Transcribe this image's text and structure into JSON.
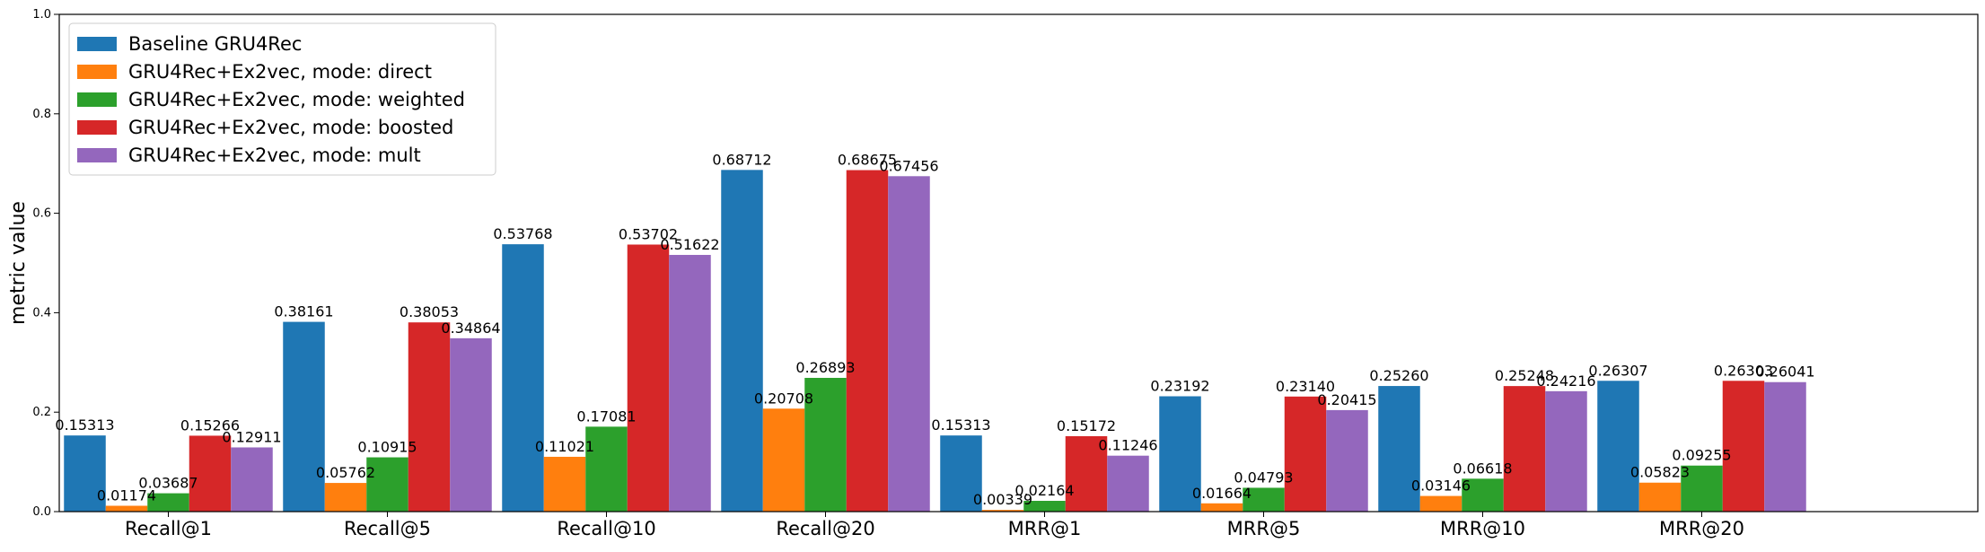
{
  "chart_data": {
    "type": "bar",
    "title": "",
    "xlabel": "",
    "ylabel": "metric value",
    "ylim": [
      0,
      1.0
    ],
    "yticks": [
      "0.0",
      "0.2",
      "0.4",
      "0.6",
      "0.8",
      "1.0"
    ],
    "grid": false,
    "legend_position": "top-left",
    "categories": [
      "Recall@1",
      "Recall@5",
      "Recall@10",
      "Recall@20",
      "MRR@1",
      "MRR@5",
      "MRR@10",
      "MRR@20"
    ],
    "series": [
      {
        "name": "Baseline GRU4Rec",
        "color": "#1f77b4",
        "values": [
          0.15313,
          0.38161,
          0.53768,
          0.68712,
          0.15313,
          0.23192,
          0.2526,
          0.26307
        ],
        "labels": [
          "0.15313",
          "0.38161",
          "0.53768",
          "0.68712",
          "0.15313",
          "0.23192",
          "0.25260",
          "0.26307"
        ]
      },
      {
        "name": "GRU4Rec+Ex2vec, mode: direct",
        "color": "#ff7f0e",
        "values": [
          0.01174,
          0.05762,
          0.11021,
          0.20708,
          0.00339,
          0.01664,
          0.03146,
          0.05823
        ],
        "labels": [
          "0.01174",
          "0.05762",
          "0.11021",
          "0.20708",
          "0.00339",
          "0.01664",
          "0.03146",
          "0.05823"
        ]
      },
      {
        "name": "GRU4Rec+Ex2vec, mode: weighted",
        "color": "#2ca02c",
        "values": [
          0.03687,
          0.10915,
          0.17081,
          0.26893,
          0.02164,
          0.04793,
          0.06618,
          0.09255
        ],
        "labels": [
          "0.03687",
          "0.10915",
          "0.17081",
          "0.26893",
          "0.02164",
          "0.04793",
          "0.06618",
          "0.09255"
        ]
      },
      {
        "name": "GRU4Rec+Ex2vec, mode: boosted",
        "color": "#d62728",
        "values": [
          0.15266,
          0.38053,
          0.53702,
          0.68675,
          0.15172,
          0.2314,
          0.25248,
          0.26303
        ],
        "labels": [
          "0.15266",
          "0.38053",
          "0.53702",
          "0.68675",
          "0.15172",
          "0.23140",
          "0.25248",
          "0.26303"
        ]
      },
      {
        "name": "GRU4Rec+Ex2vec, mode: mult",
        "color": "#9467bd",
        "values": [
          0.12911,
          0.34864,
          0.51622,
          0.67456,
          0.11246,
          0.20415,
          0.24216,
          0.26041
        ],
        "labels": [
          "0.12911",
          "0.34864",
          "0.51622",
          "0.67456",
          "0.11246",
          "0.20415",
          "0.24216",
          "0.26041"
        ]
      }
    ]
  }
}
